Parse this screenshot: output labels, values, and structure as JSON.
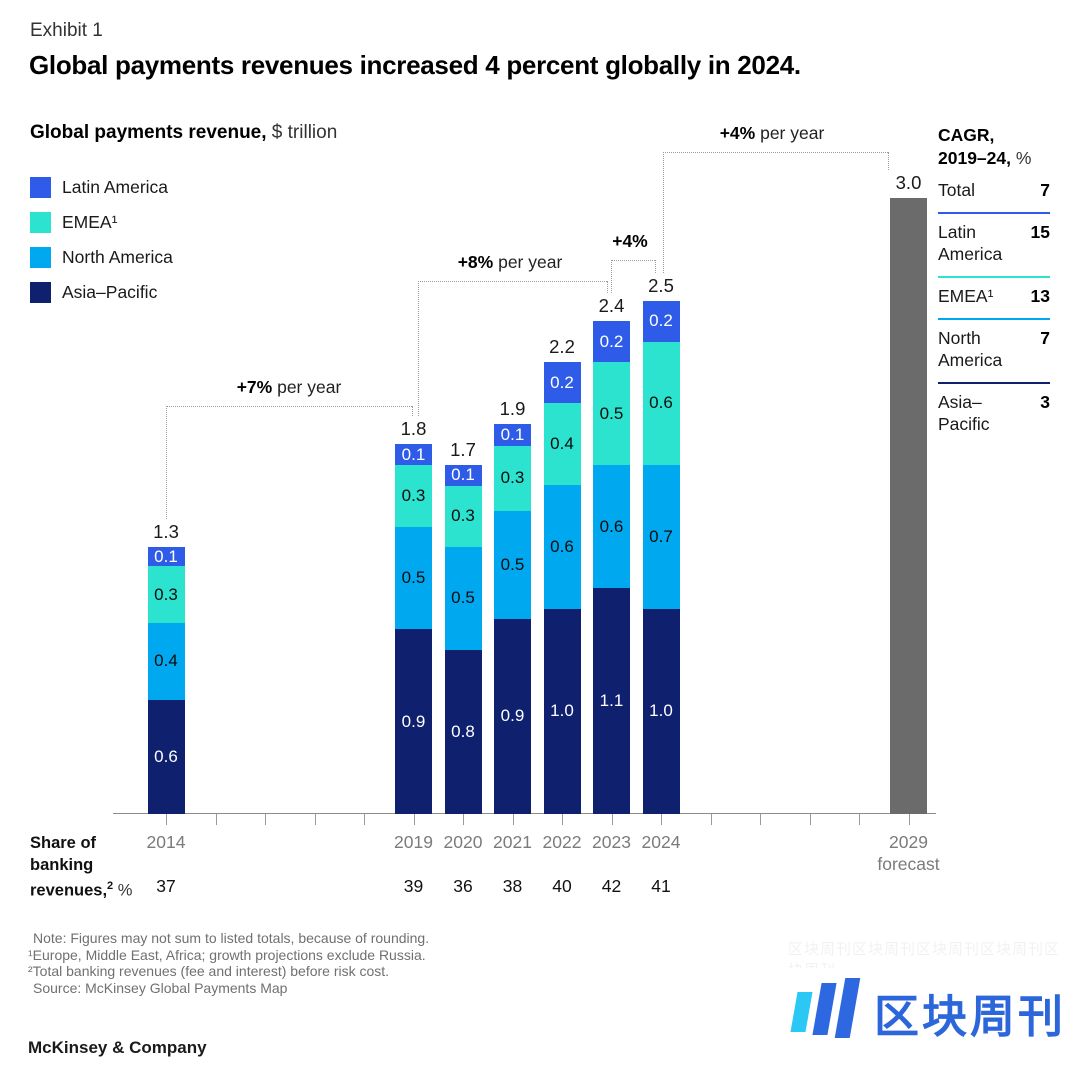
{
  "exhibit_label": "Exhibit 1",
  "headline": "Global payments revenues increased 4 percent globally in 2024.",
  "chart_header": {
    "title": "Global payments revenue,",
    "unit": " $ trillion"
  },
  "legend": {
    "items": [
      {
        "label": "Latin America",
        "color": "#2E5BE8"
      },
      {
        "label": "EMEA¹",
        "color": "#2BE3CE"
      },
      {
        "label": "North America",
        "color": "#00A8F0"
      },
      {
        "label": "Asia–Pacific",
        "color": "#0E206E"
      }
    ]
  },
  "chart_data": {
    "type": "bar",
    "subtype": "stacked",
    "title": "Global payments revenue",
    "unit": "$ trillion",
    "series_order_bottom_to_top": [
      "Asia–Pacific",
      "North America",
      "EMEA¹",
      "Latin America"
    ],
    "series_colors": {
      "Asia–Pacific": "#0E206E",
      "North America": "#00A8F0",
      "EMEA¹": "#2BE3CE",
      "Latin America": "#2E5BE8",
      "forecast": "#6B6B6B"
    },
    "bars": [
      {
        "year": "2014",
        "total": 1.3,
        "segments": [
          0.6,
          0.4,
          0.3,
          0.1
        ],
        "share_of_banking": 37
      },
      {
        "year": "2019",
        "total": 1.8,
        "segments": [
          0.9,
          0.5,
          0.3,
          0.1
        ],
        "share_of_banking": 39
      },
      {
        "year": "2020",
        "total": 1.7,
        "segments": [
          0.8,
          0.5,
          0.3,
          0.1
        ],
        "share_of_banking": 36
      },
      {
        "year": "2021",
        "total": 1.9,
        "segments": [
          0.9,
          0.5,
          0.3,
          0.1
        ],
        "share_of_banking": 38
      },
      {
        "year": "2022",
        "total": 2.2,
        "segments": [
          1.0,
          0.6,
          0.4,
          0.2
        ],
        "share_of_banking": 40
      },
      {
        "year": "2023",
        "total": 2.4,
        "segments": [
          1.1,
          0.6,
          0.5,
          0.2
        ],
        "share_of_banking": 42
      },
      {
        "year": "2024",
        "total": 2.5,
        "segments": [
          1.0,
          0.7,
          0.6,
          0.2
        ],
        "share_of_banking": 41
      },
      {
        "year": "2029",
        "year_sub": "forecast",
        "total": 3.0,
        "segments": null,
        "forecast": true,
        "share_of_banking": null
      }
    ],
    "annotations": [
      {
        "bold": "+7%",
        "text": " per year",
        "from": "2014",
        "to": "2019"
      },
      {
        "bold": "+8%",
        "text": " per year",
        "from": "2019",
        "to": "2023"
      },
      {
        "bold": "+4%",
        "text": "",
        "from": "2023",
        "to": "2024"
      },
      {
        "bold": "+4%",
        "text": " per year",
        "from": "2024",
        "to": "2029"
      }
    ],
    "cagr": {
      "header_line1": "CAGR,",
      "header_line2_bold": "2019–24,",
      "header_line2_rest": " %",
      "rows": [
        {
          "name_lines": [
            "Total"
          ],
          "value": "7",
          "rule_color": null
        },
        {
          "name_lines": [
            "Latin",
            "America"
          ],
          "value": "15",
          "rule_color": "#2E5BE8"
        },
        {
          "name_lines": [
            "EMEA¹"
          ],
          "value": "13",
          "rule_color": "#2BE3CE"
        },
        {
          "name_lines": [
            "North",
            "America"
          ],
          "value": "7",
          "rule_color": "#00A8F0"
        },
        {
          "name_lines": [
            "Asia–",
            "Pacific"
          ],
          "value": "3",
          "rule_color": "#0E206E"
        }
      ]
    },
    "axis": {
      "x_type": "years",
      "gridlines": false,
      "baseline": true
    }
  },
  "share_row": {
    "label_lines": [
      "Share of",
      "banking"
    ],
    "label_last_bold": "revenues,",
    "label_last_sup": "2",
    "label_last_rest": " %"
  },
  "notes": {
    "lines": [
      "Note: Figures may not sum to listed totals, because of rounding.",
      "¹Europe, Middle East, Africa; growth projections exclude Russia.",
      "²Total banking revenues (fee and interest) before risk cost.",
      "Source: McKinsey Global Payments Map"
    ]
  },
  "brand": "McKinsey & Company",
  "watermark": {
    "text": "区块周刊",
    "text_color": "#2C66DB",
    "bar_color": "#2D68E0",
    "accent_color": "#2BC8F5",
    "faint_text": "区块周刊区块周刊区块周刊区块周刊区块周刊"
  }
}
